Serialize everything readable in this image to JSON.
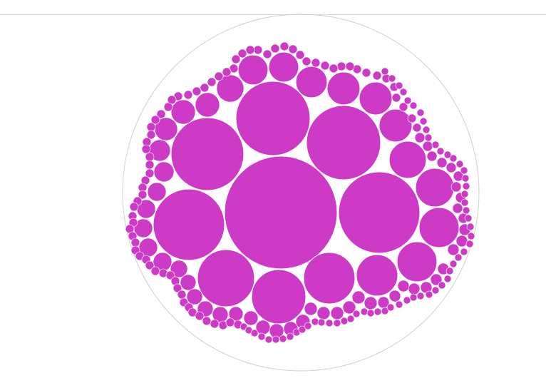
{
  "diagram": {
    "type": "circle-packing",
    "colors": {
      "fill": "#cc3ac6",
      "node_stroke": "#ffffff",
      "enclosing_stroke": "#cfcfcf",
      "rule": "#d9d9d9",
      "background": "#ffffff"
    },
    "node_count_visible": "many",
    "labels": []
  }
}
